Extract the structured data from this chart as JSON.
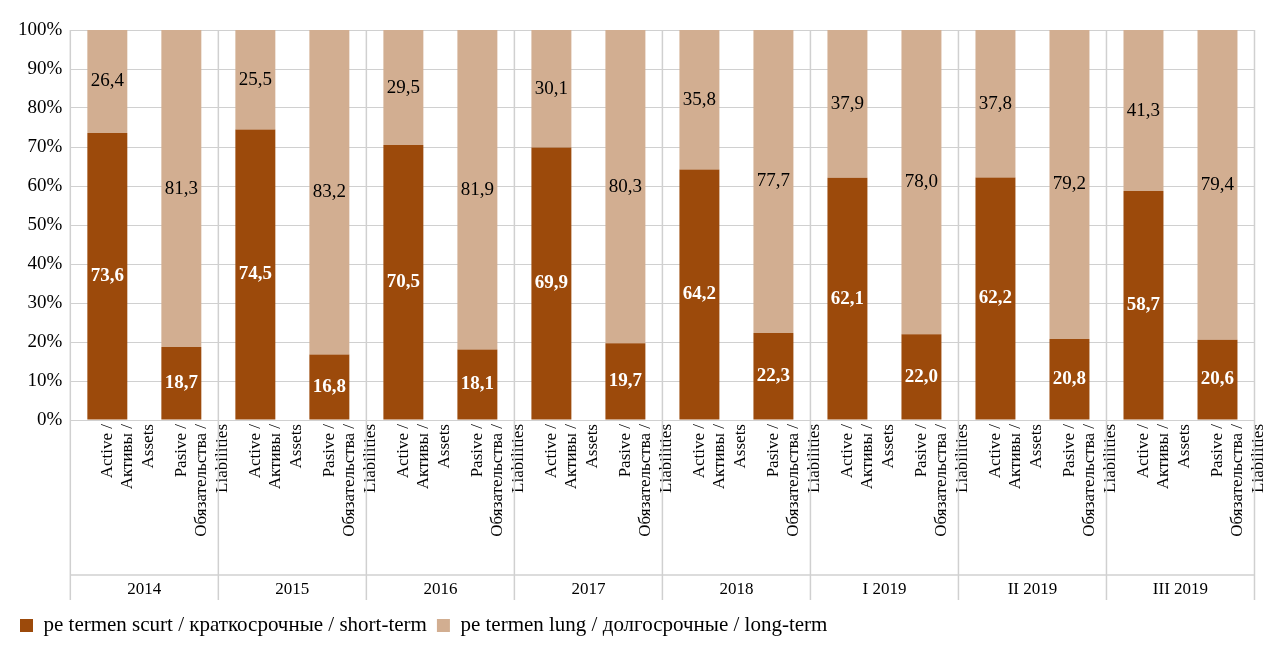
{
  "chart_data": {
    "type": "bar",
    "stacked": true,
    "categories": [
      "Active / Активы / Assets",
      "Pasive / Обязательства / Liabilities",
      "Active / Активы / Assets",
      "Pasive / Обязательства / Liabilities",
      "Active / Активы / Assets",
      "Pasive / Обязательства / Liabilities",
      "Active / Активы / Assets",
      "Pasive / Обязательства / Liabilities",
      "Active / Активы / Assets",
      "Pasive / Обязательства / Liabilities",
      "Active / Активы / Assets",
      "Pasive / Обязательства / Liabilities",
      "Active / Активы / Assets",
      "Pasive / Обязательства / Liabilities",
      "Active / Активы / Assets",
      "Pasive / Обязательства / Liabilities"
    ],
    "annotations": [
      "2014",
      "2015",
      "2016",
      "2017",
      "2018",
      "I 2019",
      "II 2019",
      "III 2019"
    ],
    "series": [
      {
        "name": "pe termen scurt / краткосрочные / short-term",
        "color": "#9c4a0b",
        "values": [
          73.6,
          18.7,
          74.5,
          16.8,
          70.5,
          18.1,
          69.9,
          19.7,
          64.2,
          22.3,
          62.1,
          22.0,
          62.2,
          20.8,
          58.7,
          20.6
        ],
        "value_labels": [
          "73,6",
          "18,7",
          "74,5",
          "16,8",
          "70,5",
          "18,1",
          "69,9",
          "19,7",
          "64,2",
          "22,3",
          "62,1",
          "22,0",
          "62,2",
          "20,8",
          "58,7",
          "20,6"
        ]
      },
      {
        "name": "pe termen lung / долгосрочные / long-term",
        "color": "#d2ae91",
        "values": [
          26.4,
          81.3,
          25.5,
          83.2,
          29.5,
          81.9,
          30.1,
          80.3,
          35.8,
          77.7,
          37.9,
          78.0,
          37.8,
          79.2,
          41.3,
          79.4
        ],
        "value_labels": [
          "26,4",
          "81,3",
          "25,5",
          "83,2",
          "29,5",
          "81,9",
          "30,1",
          "80,3",
          "35,8",
          "77,7",
          "37,9",
          "78,0",
          "37,8",
          "79,2",
          "41,3",
          "79,4"
        ]
      }
    ],
    "ylim": [
      0,
      100
    ],
    "yticks": [
      {
        "value": 0,
        "label": "0%"
      },
      {
        "value": 10,
        "label": "10%"
      },
      {
        "value": 20,
        "label": "20%"
      },
      {
        "value": 30,
        "label": "30%"
      },
      {
        "value": 40,
        "label": "40%"
      },
      {
        "value": 50,
        "label": "50%"
      },
      {
        "value": 60,
        "label": "60%"
      },
      {
        "value": 70,
        "label": "70%"
      },
      {
        "value": 80,
        "label": "80%"
      },
      {
        "value": 90,
        "label": "90%"
      },
      {
        "value": 100,
        "label": "100%"
      }
    ],
    "grid": "y",
    "legend": "bottom"
  }
}
